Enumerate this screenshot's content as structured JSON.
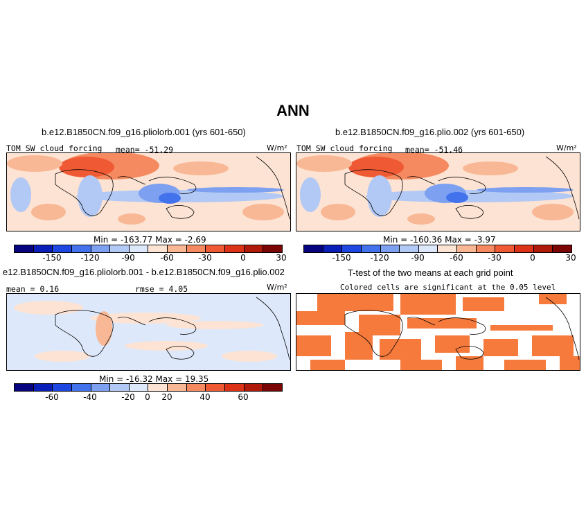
{
  "figure": {
    "title": "ANN"
  },
  "panels": [
    {
      "id": "p1",
      "title": "b.e12.B1850CN.f09_g16.pliolorb.001 (yrs 601-650)",
      "variable_label": "TOM SW cloud forcing",
      "stat_label": "mean= -51.29",
      "units_label": "W/m²",
      "minmax_label": "Min = -163.77  Max =  -2.69",
      "colorbar_ticks": [
        "-150",
        "-120",
        "-90",
        "-60",
        "-30",
        "0",
        "30"
      ]
    },
    {
      "id": "p2",
      "title": "b.e12.B1850CN.f09_g16.plio.002 (yrs 601-650)",
      "variable_label": "TOM SW cloud forcing",
      "stat_label": "mean= -51.46",
      "units_label": "W/m²",
      "minmax_label": "Min = -160.36  Max =  -3.97",
      "colorbar_ticks": [
        "-150",
        "-120",
        "-90",
        "-60",
        "-30",
        "0",
        "30"
      ]
    },
    {
      "id": "p3",
      "title": "e12.B1850CN.f09_g16.pliolorb.001 - b.e12.B1850CN.f09_g16.plio.002",
      "stat_label": "mean =  0.16",
      "rmse_label": "rmse =   4.05",
      "units_label": "W/m²",
      "minmax_label": "Min = -16.32  Max =  19.35",
      "colorbar_ticks": [
        "-60",
        "-40",
        "-20",
        "0",
        "20",
        "40",
        "60"
      ]
    },
    {
      "id": "p4",
      "title": "T-test of the two means at each grid point",
      "subtitle": "Colored cells are significant at the 0.05 level"
    }
  ],
  "colorbar_colors": [
    "#06047f",
    "#0a1fb8",
    "#1d47e0",
    "#4373ec",
    "#7da0f0",
    "#b2c9f5",
    "#dde9fb",
    "#fde3d3",
    "#f9b895",
    "#f58a60",
    "#ef5a34",
    "#dc3218",
    "#b01a0a",
    "#7a0706"
  ],
  "significance_color": "#f57a3c"
}
